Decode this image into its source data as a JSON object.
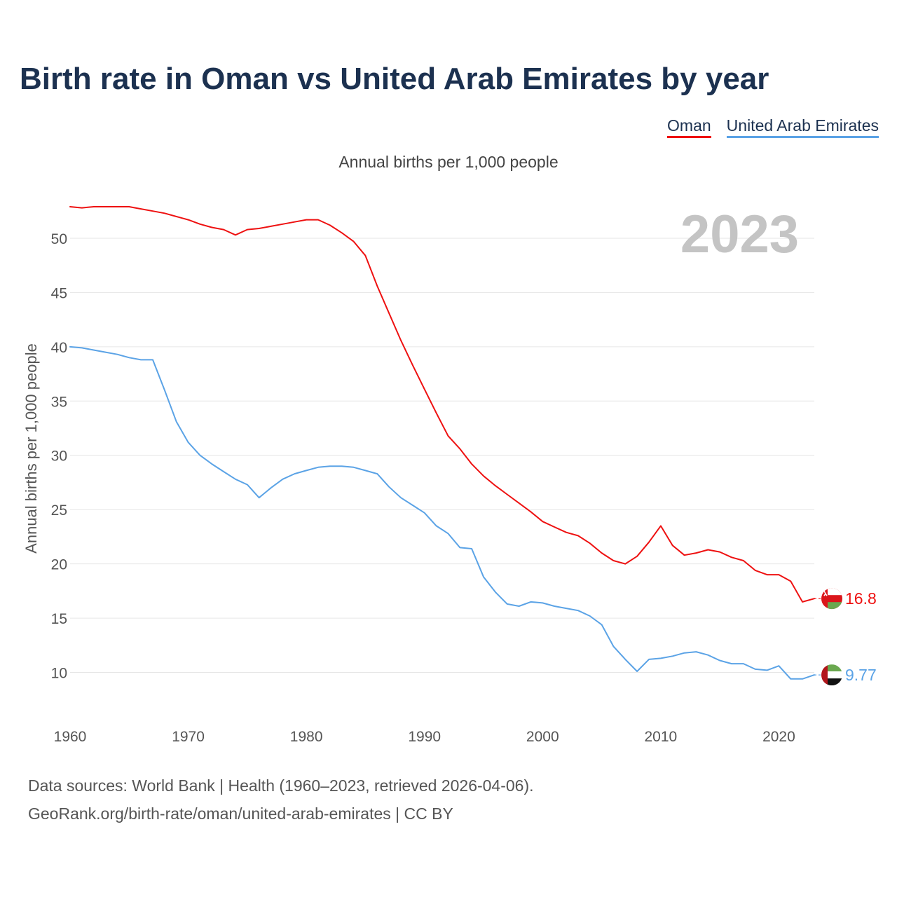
{
  "title": "Birth rate in Oman vs United Arab Emirates by year",
  "subtitle": "Annual births per 1,000 people",
  "source_line1": "Data sources: World Bank | Health (1960–2023, retrieved 2026-04-06).",
  "source_line2": "GeoRank.org/birth-rate/oman/united-arab-emirates | CC BY",
  "chart_data": {
    "type": "line",
    "title": "Birth rate in Oman vs United Arab Emirates by year",
    "subtitle": "Annual births per 1,000 people",
    "ylabel": "Annual births per 1,000 people",
    "xlabel": "",
    "xlim": [
      1960,
      2023
    ],
    "ylim": [
      7,
      54
    ],
    "xticks": [
      1960,
      1970,
      1980,
      1990,
      2000,
      2010,
      2020
    ],
    "yticks": [
      10,
      15,
      20,
      25,
      30,
      35,
      40,
      45,
      50
    ],
    "grid": true,
    "legend": "top-right",
    "year_label": "2023",
    "x": [
      1960,
      1961,
      1962,
      1963,
      1964,
      1965,
      1966,
      1967,
      1968,
      1969,
      1970,
      1971,
      1972,
      1973,
      1974,
      1975,
      1976,
      1977,
      1978,
      1979,
      1980,
      1981,
      1982,
      1983,
      1984,
      1985,
      1986,
      1987,
      1988,
      1989,
      1990,
      1991,
      1992,
      1993,
      1994,
      1995,
      1996,
      1997,
      1998,
      1999,
      2000,
      2001,
      2002,
      2003,
      2004,
      2005,
      2006,
      2007,
      2008,
      2009,
      2010,
      2011,
      2012,
      2013,
      2014,
      2015,
      2016,
      2017,
      2018,
      2019,
      2020,
      2021,
      2022,
      2023
    ],
    "series": [
      {
        "name": "Oman",
        "color": "#ee1111",
        "end_label": "16.8",
        "values": [
          52.9,
          52.8,
          52.9,
          52.9,
          52.9,
          52.9,
          52.7,
          52.5,
          52.3,
          52.0,
          51.7,
          51.3,
          51.0,
          50.8,
          50.3,
          50.8,
          50.9,
          51.1,
          51.3,
          51.5,
          51.7,
          51.7,
          51.2,
          50.5,
          49.7,
          48.4,
          45.6,
          43.1,
          40.6,
          38.3,
          36.1,
          33.9,
          31.8,
          30.6,
          29.2,
          28.1,
          27.2,
          26.4,
          25.6,
          24.8,
          23.9,
          23.4,
          22.9,
          22.6,
          21.9,
          21.0,
          20.3,
          20.0,
          20.7,
          22.0,
          23.5,
          21.7,
          20.8,
          21.0,
          21.3,
          21.1,
          20.6,
          20.3,
          19.4,
          19.0,
          19.0,
          18.4,
          16.5,
          16.8
        ]
      },
      {
        "name": "United Arab Emirates",
        "color": "#5ba3e6",
        "end_label": "9.77",
        "values": [
          40.0,
          39.9,
          39.7,
          39.5,
          39.3,
          39.0,
          38.8,
          38.8,
          36.0,
          33.1,
          31.2,
          30.0,
          29.2,
          28.5,
          27.8,
          27.3,
          26.1,
          27.0,
          27.8,
          28.3,
          28.6,
          28.9,
          29.0,
          29.0,
          28.9,
          28.6,
          28.3,
          27.1,
          26.1,
          25.4,
          24.7,
          23.5,
          22.8,
          21.5,
          21.4,
          18.8,
          17.4,
          16.3,
          16.1,
          16.5,
          16.4,
          16.1,
          15.9,
          15.7,
          15.2,
          14.4,
          12.4,
          11.2,
          10.1,
          11.2,
          11.3,
          11.5,
          11.8,
          11.9,
          11.6,
          11.1,
          10.8,
          10.8,
          10.3,
          10.2,
          10.6,
          9.4,
          9.4,
          9.77
        ]
      }
    ]
  }
}
